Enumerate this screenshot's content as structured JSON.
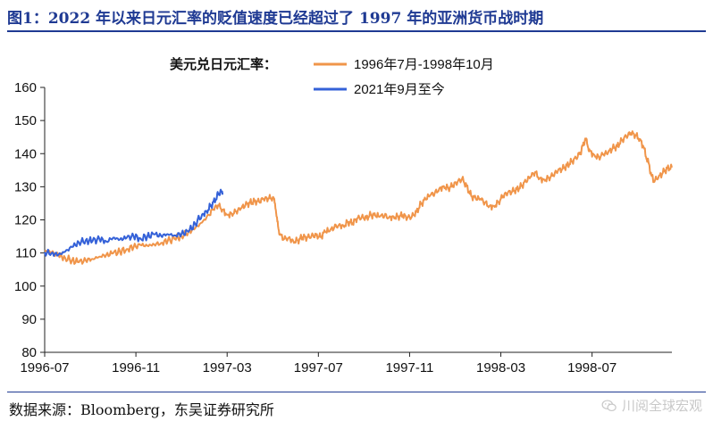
{
  "header": {
    "title": "图1：2022 年以来日元汇率的贬值速度已经超过了 1997 年的亚洲货币战时期"
  },
  "footer": {
    "source": "数据来源：Bloomberg，东吴证券研究所",
    "watermark": "川阅全球宏观",
    "watermark_icon": "wechat-icon"
  },
  "chart_data": {
    "type": "line",
    "title": "",
    "legend_title": "美元兑日元汇率：",
    "legend_position": "top-center",
    "xlabel": "",
    "ylabel": "",
    "ylim": [
      80,
      160
    ],
    "yticks": [
      80,
      90,
      100,
      110,
      120,
      130,
      140,
      150,
      160
    ],
    "xlim": [
      0,
      27.5
    ],
    "xticks": [
      {
        "value": 0,
        "label": "1996-07"
      },
      {
        "value": 4,
        "label": "1996-11"
      },
      {
        "value": 8,
        "label": "1997-03"
      },
      {
        "value": 12,
        "label": "1997-07"
      },
      {
        "value": 16,
        "label": "1997-11"
      },
      {
        "value": 20,
        "label": "1998-03"
      },
      {
        "value": 24,
        "label": "1998-07"
      }
    ],
    "grid": false,
    "series": [
      {
        "name": "1996年7月-1998年10月",
        "color": "#f0954a",
        "points": [
          [
            0.0,
            110.5
          ],
          [
            0.3,
            110.2
          ],
          [
            0.6,
            109.3
          ],
          [
            0.9,
            108.5
          ],
          [
            1.2,
            107.8
          ],
          [
            1.5,
            107.2
          ],
          [
            1.8,
            107.8
          ],
          [
            2.1,
            108.2
          ],
          [
            2.4,
            108.9
          ],
          [
            2.7,
            109.4
          ],
          [
            3.0,
            109.9
          ],
          [
            3.3,
            110.4
          ],
          [
            3.6,
            111.2
          ],
          [
            3.9,
            111.8
          ],
          [
            4.2,
            112.4
          ],
          [
            4.5,
            112.2
          ],
          [
            4.8,
            112.6
          ],
          [
            5.1,
            113.0
          ],
          [
            5.4,
            113.7
          ],
          [
            5.7,
            114.2
          ],
          [
            6.0,
            115.1
          ],
          [
            6.3,
            116.3
          ],
          [
            6.6,
            117.5
          ],
          [
            6.9,
            119.2
          ],
          [
            7.2,
            121.5
          ],
          [
            7.4,
            123.2
          ],
          [
            7.6,
            124.4
          ],
          [
            7.8,
            123.1
          ],
          [
            8.0,
            121.6
          ],
          [
            8.2,
            121.9
          ],
          [
            8.4,
            122.5
          ],
          [
            8.6,
            123.4
          ],
          [
            8.8,
            124.4
          ],
          [
            9.0,
            125.2
          ],
          [
            9.2,
            125.6
          ],
          [
            9.4,
            125.5
          ],
          [
            9.6,
            126.3
          ],
          [
            9.8,
            126.4
          ],
          [
            10.0,
            126.8
          ],
          [
            10.1,
            125.0
          ],
          [
            10.2,
            119.5
          ],
          [
            10.3,
            115.5
          ],
          [
            10.5,
            114.2
          ],
          [
            10.7,
            114.6
          ],
          [
            10.9,
            113.6
          ],
          [
            11.1,
            113.8
          ],
          [
            11.3,
            114.8
          ],
          [
            11.5,
            114.6
          ],
          [
            11.7,
            115.2
          ],
          [
            11.9,
            115.4
          ],
          [
            12.1,
            114.8
          ],
          [
            12.3,
            116.4
          ],
          [
            12.5,
            116.6
          ],
          [
            12.7,
            117.8
          ],
          [
            12.9,
            118.5
          ],
          [
            13.1,
            118.2
          ],
          [
            13.3,
            119.4
          ],
          [
            13.5,
            119.0
          ],
          [
            13.7,
            120.4
          ],
          [
            13.9,
            120.8
          ],
          [
            14.1,
            120.6
          ],
          [
            14.3,
            121.5
          ],
          [
            14.5,
            121.2
          ],
          [
            14.7,
            121.0
          ],
          [
            14.9,
            121.3
          ],
          [
            15.1,
            120.8
          ],
          [
            15.3,
            121.0
          ],
          [
            15.5,
            121.0
          ],
          [
            15.7,
            121.4
          ],
          [
            15.9,
            120.6
          ],
          [
            16.1,
            121.0
          ],
          [
            16.3,
            122.4
          ],
          [
            16.5,
            124.8
          ],
          [
            16.7,
            126.2
          ],
          [
            16.9,
            127.4
          ],
          [
            17.1,
            128.0
          ],
          [
            17.3,
            129.4
          ],
          [
            17.5,
            130.2
          ],
          [
            17.7,
            129.6
          ],
          [
            17.9,
            130.4
          ],
          [
            18.1,
            131.4
          ],
          [
            18.3,
            132.4
          ],
          [
            18.5,
            130.2
          ],
          [
            18.7,
            127.2
          ],
          [
            18.9,
            126.4
          ],
          [
            19.1,
            126.3
          ],
          [
            19.3,
            125.2
          ],
          [
            19.5,
            124.2
          ],
          [
            19.7,
            124.2
          ],
          [
            19.9,
            125.4
          ],
          [
            20.1,
            127.2
          ],
          [
            20.3,
            128.1
          ],
          [
            20.5,
            128.6
          ],
          [
            20.7,
            129.2
          ],
          [
            20.9,
            130.2
          ],
          [
            21.1,
            131.6
          ],
          [
            21.3,
            133.0
          ],
          [
            21.5,
            134.4
          ],
          [
            21.7,
            132.6
          ],
          [
            21.9,
            132.2
          ],
          [
            22.1,
            132.7
          ],
          [
            22.3,
            133.5
          ],
          [
            22.5,
            134.8
          ],
          [
            22.7,
            135.4
          ],
          [
            22.9,
            136.4
          ],
          [
            23.1,
            137.6
          ],
          [
            23.3,
            138.6
          ],
          [
            23.5,
            140.4
          ],
          [
            23.6,
            142.4
          ],
          [
            23.7,
            144.6
          ],
          [
            23.8,
            142.6
          ],
          [
            23.9,
            140.8
          ],
          [
            24.1,
            139.6
          ],
          [
            24.3,
            138.9
          ],
          [
            24.5,
            139.8
          ],
          [
            24.7,
            140.2
          ],
          [
            24.9,
            141.6
          ],
          [
            25.1,
            142.2
          ],
          [
            25.3,
            144.0
          ],
          [
            25.5,
            145.2
          ],
          [
            25.7,
            146.2
          ],
          [
            25.9,
            145.6
          ],
          [
            26.1,
            144.4
          ],
          [
            26.3,
            141.4
          ],
          [
            26.4,
            138.2
          ],
          [
            26.5,
            136.8
          ],
          [
            26.6,
            133.4
          ],
          [
            26.7,
            131.8
          ],
          [
            26.9,
            132.6
          ],
          [
            27.1,
            134.2
          ],
          [
            27.3,
            135.6
          ],
          [
            27.5,
            135.8
          ]
        ]
      },
      {
        "name": "2021年9月至今",
        "color": "#3461d8",
        "points": [
          [
            0.0,
            110.2
          ],
          [
            0.3,
            110.0
          ],
          [
            0.6,
            109.4
          ],
          [
            0.9,
            110.4
          ],
          [
            1.2,
            111.8
          ],
          [
            1.5,
            113.2
          ],
          [
            1.8,
            113.8
          ],
          [
            2.1,
            113.6
          ],
          [
            2.4,
            114.2
          ],
          [
            2.7,
            113.5
          ],
          [
            3.0,
            114.6
          ],
          [
            3.3,
            114.1
          ],
          [
            3.6,
            114.6
          ],
          [
            3.9,
            115.0
          ],
          [
            4.2,
            114.4
          ],
          [
            4.5,
            115.0
          ],
          [
            4.8,
            115.6
          ],
          [
            5.1,
            115.2
          ],
          [
            5.4,
            115.7
          ],
          [
            5.7,
            115.3
          ],
          [
            6.0,
            115.8
          ],
          [
            6.3,
            116.4
          ],
          [
            6.6,
            118.8
          ],
          [
            6.9,
            121.6
          ],
          [
            7.1,
            122.6
          ],
          [
            7.3,
            124.4
          ],
          [
            7.5,
            126.2
          ],
          [
            7.6,
            127.6
          ],
          [
            7.7,
            128.7
          ],
          [
            7.8,
            127.6
          ]
        ]
      }
    ]
  }
}
